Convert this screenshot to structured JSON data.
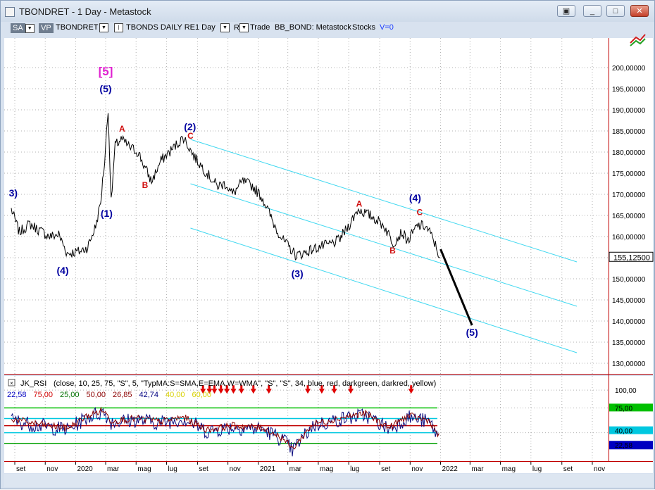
{
  "window": {
    "title": "TBONDRET - 1 Day - Metastock",
    "buttons": [
      "▣",
      "_",
      "□",
      "✕"
    ]
  },
  "toolbar": {
    "sa": "SA",
    "vp": "VP",
    "symbol": "TBONDRET",
    "security": "TBONDS DAILY RE",
    "period": "1 Day",
    "r": "R",
    "trade": "Trade",
    "source": "BB_BOND: Metastock",
    "stocks": "Stocks",
    "volume": "V=0"
  },
  "chart_data": {
    "type": "line",
    "price_panel": {
      "ylim": [
        127500,
        207000
      ],
      "yticks": [
        "200,00000",
        "195,00000",
        "190,00000",
        "185,00000",
        "180,00000",
        "175,00000",
        "170,00000",
        "165,00000",
        "160,00000",
        "155,00000",
        "150,00000",
        "145,00000",
        "140,00000",
        "135,00000",
        "130,00000"
      ],
      "last_price_label": "155,12500",
      "series": [
        {
          "x": [
            "2019-08-25",
            "2019-09-10",
            "2019-10-01",
            "2019-10-20",
            "2019-11-10",
            "2019-11-28",
            "2019-12-15",
            "2020-01-10",
            "2020-01-25",
            "2020-02-10",
            "2020-02-20",
            "2020-02-28",
            "2020-03-06",
            "2020-03-12",
            "2020-03-20",
            "2020-04-01",
            "2020-04-20",
            "2020-05-05",
            "2020-05-20",
            "2020-06-01",
            "2020-06-20",
            "2020-07-15",
            "2020-08-04",
            "2020-08-25",
            "2020-09-20",
            "2020-10-10",
            "2020-10-28",
            "2020-11-10",
            "2020-12-01",
            "2020-12-20",
            "2021-01-10",
            "2021-02-01",
            "2021-02-20",
            "2021-03-18",
            "2021-04-10",
            "2021-05-01",
            "2021-05-20",
            "2021-06-10",
            "2021-06-28",
            "2021-07-20",
            "2021-08-04",
            "2021-08-20",
            "2021-09-10",
            "2021-09-28",
            "2021-10-15",
            "2021-10-28",
            "2021-11-15",
            "2021-12-01",
            "2021-12-10",
            "2021-12-20",
            "2021-12-31"
          ],
          "y": [
            166500,
            161000,
            163000,
            161500,
            160000,
            160500,
            156000,
            156500,
            157500,
            162500,
            168000,
            178000,
            190500,
            168000,
            181500,
            183000,
            181000,
            180000,
            176000,
            173000,
            178000,
            181000,
            183500,
            179000,
            175000,
            172000,
            172500,
            170000,
            173000,
            172000,
            169000,
            163000,
            159000,
            155500,
            156500,
            157500,
            158000,
            159000,
            162000,
            166500,
            165500,
            164500,
            162500,
            158500,
            161000,
            159000,
            162500,
            162500,
            161000,
            158500,
            155000
          ]
        }
      ],
      "projection": {
        "x": [
          "2022-01-01",
          "2022-03-05"
        ],
        "y": [
          157000,
          139000
        ]
      },
      "channel_lines": [
        {
          "x": [
            "2020-08-18",
            "2022-10-01"
          ],
          "y": [
            183000,
            154000
          ]
        },
        {
          "x": [
            "2020-08-18",
            "2022-10-01"
          ],
          "y": [
            172500,
            143500
          ]
        },
        {
          "x": [
            "2020-08-18",
            "2022-10-01"
          ],
          "y": [
            162000,
            132500
          ]
        }
      ],
      "annotations": [
        {
          "text": "[5]",
          "x": "2020-03-01",
          "y": 198200,
          "color": "#e020d0"
        },
        {
          "text": "(5)",
          "x": "2020-03-01",
          "y": 194200,
          "color": "#0000a0"
        },
        {
          "text": "A",
          "x": "2020-04-03",
          "y": 184800,
          "color": "#d01010"
        },
        {
          "text": "B",
          "x": "2020-05-19",
          "y": 171500,
          "color": "#d01010"
        },
        {
          "text": "(2)",
          "x": "2020-08-17",
          "y": 185200,
          "color": "#0000a0"
        },
        {
          "text": "C",
          "x": "2020-08-18",
          "y": 183200,
          "color": "#d01010"
        },
        {
          "text": "3)",
          "x": "2019-08-29",
          "y": 169500,
          "color": "#0000a0"
        },
        {
          "text": "(1)",
          "x": "2020-03-03",
          "y": 164700,
          "color": "#0000a0"
        },
        {
          "text": "(4)",
          "x": "2019-12-06",
          "y": 151200,
          "color": "#0000a0"
        },
        {
          "text": "(3)",
          "x": "2021-03-20",
          "y": 150400,
          "color": "#0000a0"
        },
        {
          "text": "A",
          "x": "2021-07-22",
          "y": 167100,
          "color": "#d01010"
        },
        {
          "text": "B",
          "x": "2021-09-27",
          "y": 156000,
          "color": "#d01010"
        },
        {
          "text": "(4)",
          "x": "2021-11-11",
          "y": 168300,
          "color": "#0000a0"
        },
        {
          "text": "C",
          "x": "2021-11-20",
          "y": 165100,
          "color": "#d01010"
        },
        {
          "text": "(5)",
          "x": "2022-03-05",
          "y": 136500,
          "color": "#0000a0"
        }
      ]
    },
    "indicator_panel": {
      "title": "JK_RSI",
      "params": "(close,  10,  25,  75,  \"S\",  5,  \"TypMA:S=SMA,E=EMA,W=WMA\",  \"S\",  \"S\",  34,  blue,  red,  darkgreen,  darkred,  yellow)",
      "values": [
        {
          "text": "22,58",
          "color": "#0000c0"
        },
        {
          "text": "75,00",
          "color": "#d00000"
        },
        {
          "text": "25,00",
          "color": "#007000"
        },
        {
          "text": "50,00",
          "color": "#8b0000"
        },
        {
          "text": "26,85",
          "color": "#8b0000"
        },
        {
          "text": "42,74",
          "color": "#000080"
        },
        {
          "text": "40,00",
          "color": "#d8d000"
        },
        {
          "text": "60,00",
          "color": "#d8d000"
        }
      ],
      "ylim": [
        0,
        120
      ],
      "levels": [
        {
          "y": 75,
          "color": "#00c000"
        },
        {
          "y": 60,
          "color": "#00c8e0"
        },
        {
          "y": 50,
          "color": "#c00000"
        },
        {
          "y": 40,
          "color": "#00c8e0"
        },
        {
          "y": 25,
          "color": "#00a000"
        }
      ],
      "axis_labels": [
        "100,00",
        "75,00",
        "40,00",
        "22,58"
      ],
      "rsi_anchor": {
        "x": [
          "2019-08-25",
          "2019-10-01",
          "2019-11-10",
          "2019-12-15",
          "2020-01-20",
          "2020-02-25",
          "2020-03-12",
          "2020-05-01",
          "2020-06-20",
          "2020-08-04",
          "2020-09-20",
          "2020-11-10",
          "2021-01-10",
          "2021-02-20",
          "2021-03-10",
          "2021-04-20",
          "2021-06-20",
          "2021-08-04",
          "2021-09-20",
          "2021-10-28",
          "2021-12-10",
          "2021-12-31"
        ],
        "y": [
          58,
          52,
          48,
          44,
          60,
          70,
          55,
          58,
          54,
          60,
          42,
          48,
          45,
          30,
          15,
          50,
          60,
          65,
          45,
          62,
          55,
          30
        ]
      },
      "signal_markers": [
        "2020-09-12",
        "2020-09-25",
        "2020-10-05",
        "2020-10-18",
        "2020-10-30",
        "2020-11-12",
        "2020-11-28",
        "2020-12-22",
        "2021-01-22",
        "2021-04-10",
        "2021-05-08",
        "2021-06-02",
        "2021-07-05",
        "2021-11-03"
      ]
    },
    "x_axis": {
      "ticks": [
        {
          "label": "set",
          "x": "2019-09-01"
        },
        {
          "label": "nov",
          "x": "2019-11-01"
        },
        {
          "label": "2020",
          "x": "2020-01-01"
        },
        {
          "label": "mar",
          "x": "2020-03-01"
        },
        {
          "label": "mag",
          "x": "2020-05-01"
        },
        {
          "label": "lug",
          "x": "2020-07-01"
        },
        {
          "label": "set",
          "x": "2020-09-01"
        },
        {
          "label": "nov",
          "x": "2020-11-01"
        },
        {
          "label": "2021",
          "x": "2021-01-01"
        },
        {
          "label": "mar",
          "x": "2021-03-01"
        },
        {
          "label": "mag",
          "x": "2021-05-01"
        },
        {
          "label": "lug",
          "x": "2021-07-01"
        },
        {
          "label": "set",
          "x": "2021-09-01"
        },
        {
          "label": "nov",
          "x": "2021-11-01"
        },
        {
          "label": "2022",
          "x": "2022-01-01"
        },
        {
          "label": "mar",
          "x": "2022-03-01"
        },
        {
          "label": "mag",
          "x": "2022-05-01"
        },
        {
          "label": "lug",
          "x": "2022-07-01"
        },
        {
          "label": "set",
          "x": "2022-09-01"
        },
        {
          "label": "nov",
          "x": "2022-11-01"
        }
      ]
    }
  }
}
